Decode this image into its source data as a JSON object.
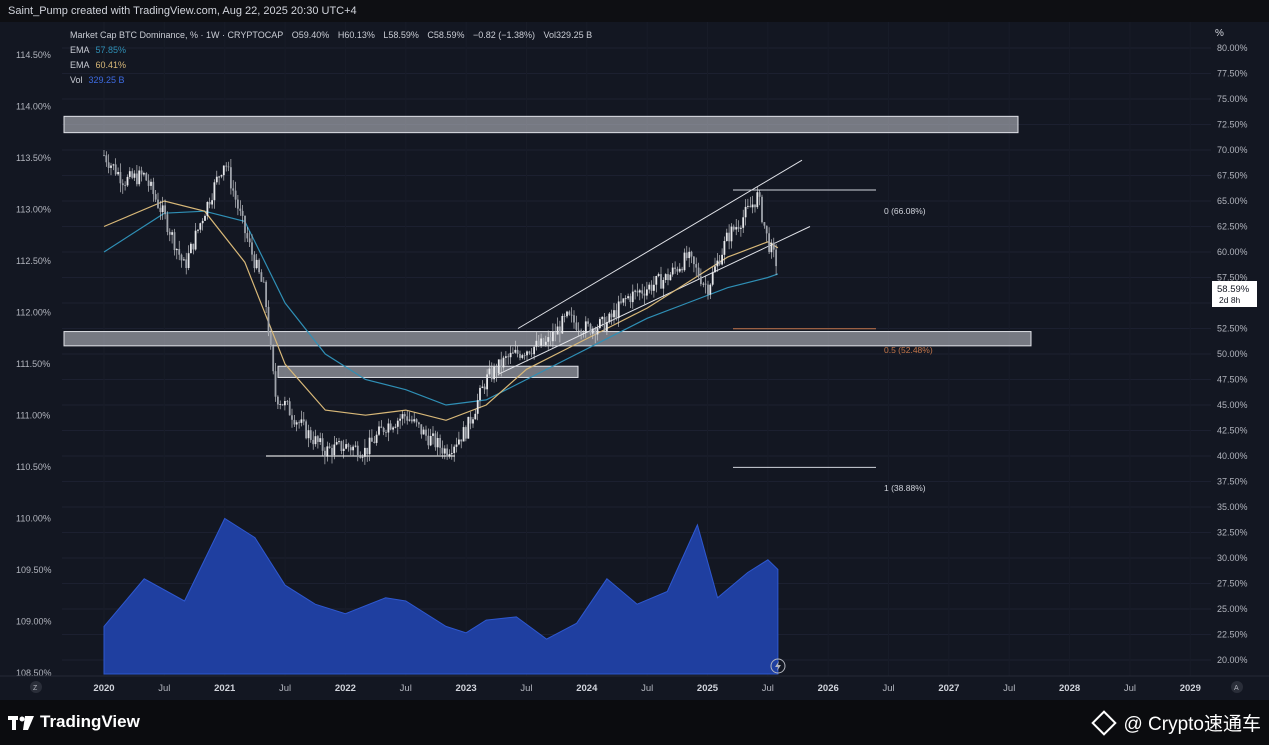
{
  "header": {
    "author_line": "Saint_Pump created with TradingView.com, Aug 22, 2025 20:30 UTC+4"
  },
  "legend": {
    "title": "Market Cap BTC Dominance, % · 1W · CRYPTOCAP",
    "o_label": "O",
    "o_value": "59.40%",
    "h_label": "H",
    "h_value": "60.13%",
    "l_label": "L",
    "l_value": "58.59%",
    "c_label": "C",
    "c_value": "58.59%",
    "change": "−0.82 (−1.38%)",
    "vol_label": "Vol",
    "vol_value": "329.25 B",
    "ema1_label": "EMA",
    "ema1_value": "57.85%",
    "ema2_label": "EMA",
    "ema2_value": "60.41%",
    "vol_row_label": "Vol",
    "vol_row_value": "329.25 B"
  },
  "colors": {
    "background": "#131722",
    "candle": "#d9dadc",
    "ema_fast": "#2f8fb5",
    "ema_slow": "#d8b878",
    "volume": "#1f3fa0",
    "zone": "#c9cbd2",
    "fib_mid": "#c4764a",
    "text": "#b2b5be"
  },
  "icons": {
    "percent_button": "%",
    "scale_z": "Z",
    "scale_a": "A",
    "lightning": "lightning-icon"
  },
  "price_labels": {
    "current": "58.59%",
    "countdown": "2d 8h"
  },
  "fib_labels": {
    "level_0": "0 (66.08%)",
    "level_05": "0.5 (52.48%)",
    "level_1": "1 (38.88%)"
  },
  "footer": {
    "brand": "TradingView",
    "watermark": "@ Crypto速通车"
  },
  "chart_data": {
    "type": "line",
    "title": "Market Cap BTC Dominance, %",
    "timeframe": "1W",
    "x_range": [
      "2020-01",
      "2029-06"
    ],
    "x_ticks": [
      "2020",
      "Jul",
      "2021",
      "Jul",
      "2022",
      "Jul",
      "2023",
      "Jul",
      "2024",
      "Jul",
      "2025",
      "Jul",
      "2026",
      "Jul",
      "2027",
      "Jul",
      "2028",
      "Jul",
      "2029"
    ],
    "right_axis": {
      "label": "%",
      "range": [
        20,
        80
      ],
      "ticks": [
        "80.00%",
        "77.50%",
        "75.00%",
        "72.50%",
        "70.00%",
        "67.50%",
        "65.00%",
        "62.50%",
        "60.00%",
        "57.50%",
        "55.00%",
        "52.50%",
        "50.00%",
        "47.50%",
        "45.00%",
        "42.50%",
        "40.00%",
        "37.50%",
        "35.00%",
        "32.50%",
        "30.00%",
        "27.50%",
        "25.00%",
        "22.50%",
        "20.00%"
      ]
    },
    "left_axis": {
      "range": [
        108.5,
        114.5
      ],
      "ticks": [
        "114.50%",
        "114.00%",
        "113.50%",
        "113.00%",
        "112.50%",
        "112.00%",
        "111.50%",
        "111.00%",
        "110.50%",
        "110.00%",
        "109.50%",
        "109.00%",
        "108.50%"
      ]
    },
    "series": [
      {
        "name": "BTC Dominance",
        "x": [
          "2020-01",
          "2020-03",
          "2020-05",
          "2020-07",
          "2020-09",
          "2020-11",
          "2021-01",
          "2021-03",
          "2021-05",
          "2021-06",
          "2021-07",
          "2021-09",
          "2021-11",
          "2022-01",
          "2022-03",
          "2022-05",
          "2022-07",
          "2022-09",
          "2022-11",
          "2023-01",
          "2023-03",
          "2023-05",
          "2023-07",
          "2023-09",
          "2023-11",
          "2024-01",
          "2024-03",
          "2024-05",
          "2024-07",
          "2024-09",
          "2024-11",
          "2025-01",
          "2025-03",
          "2025-05",
          "2025-06",
          "2025-07",
          "2025-08"
        ],
        "y": [
          69.5,
          67.0,
          67.5,
          63.5,
          58.5,
          64.0,
          69.0,
          62.0,
          56.0,
          46.0,
          45.0,
          42.5,
          40.5,
          41.0,
          40.5,
          43.0,
          44.0,
          42.0,
          40.5,
          42.5,
          47.5,
          49.5,
          50.5,
          51.0,
          53.5,
          52.5,
          53.0,
          55.5,
          56.5,
          57.5,
          59.5,
          56.5,
          61.5,
          64.0,
          65.5,
          61.0,
          58.59
        ]
      },
      {
        "name": "EMA",
        "x": [
          "2020-01",
          "2020-07",
          "2020-11",
          "2021-03",
          "2021-07",
          "2021-11",
          "2022-03",
          "2022-07",
          "2022-11",
          "2023-03",
          "2023-07",
          "2023-11",
          "2024-03",
          "2024-07",
          "2024-11",
          "2025-03",
          "2025-07",
          "2025-08"
        ],
        "y": [
          60.0,
          63.8,
          64.0,
          63.0,
          55.0,
          50.0,
          47.5,
          46.5,
          45.0,
          45.5,
          47.5,
          49.5,
          51.5,
          53.5,
          55.0,
          56.5,
          57.5,
          57.85
        ]
      },
      {
        "name": "EMA",
        "x": [
          "2020-01",
          "2020-07",
          "2020-11",
          "2021-03",
          "2021-07",
          "2021-11",
          "2022-03",
          "2022-07",
          "2022-11",
          "2023-03",
          "2023-07",
          "2023-11",
          "2024-03",
          "2024-07",
          "2024-11",
          "2025-03",
          "2025-07",
          "2025-08"
        ],
        "y": [
          62.5,
          65.0,
          64.0,
          59.0,
          49.0,
          44.5,
          44.0,
          44.5,
          43.5,
          45.0,
          48.5,
          50.5,
          52.5,
          54.5,
          57.0,
          59.5,
          61.0,
          60.41
        ]
      }
    ],
    "fib_levels": [
      {
        "ratio": 0,
        "value": 66.08
      },
      {
        "ratio": 0.5,
        "value": 52.48
      },
      {
        "ratio": 1,
        "value": 38.88
      }
    ],
    "volume": {
      "x": [
        "2020-01",
        "2020-05",
        "2020-09",
        "2021-01",
        "2021-04",
        "2021-07",
        "2021-10",
        "2022-01",
        "2022-05",
        "2022-07",
        "2022-11",
        "2023-01",
        "2023-03",
        "2023-06",
        "2023-09",
        "2023-12",
        "2024-03",
        "2024-06",
        "2024-09",
        "2024-12",
        "2025-02",
        "2025-05",
        "2025-07",
        "2025-08"
      ],
      "y": [
        150,
        300,
        230,
        490,
        430,
        280,
        220,
        190,
        240,
        230,
        150,
        130,
        170,
        180,
        110,
        160,
        300,
        220,
        260,
        470,
        240,
        320,
        360,
        329.25
      ]
    },
    "grid": true
  }
}
